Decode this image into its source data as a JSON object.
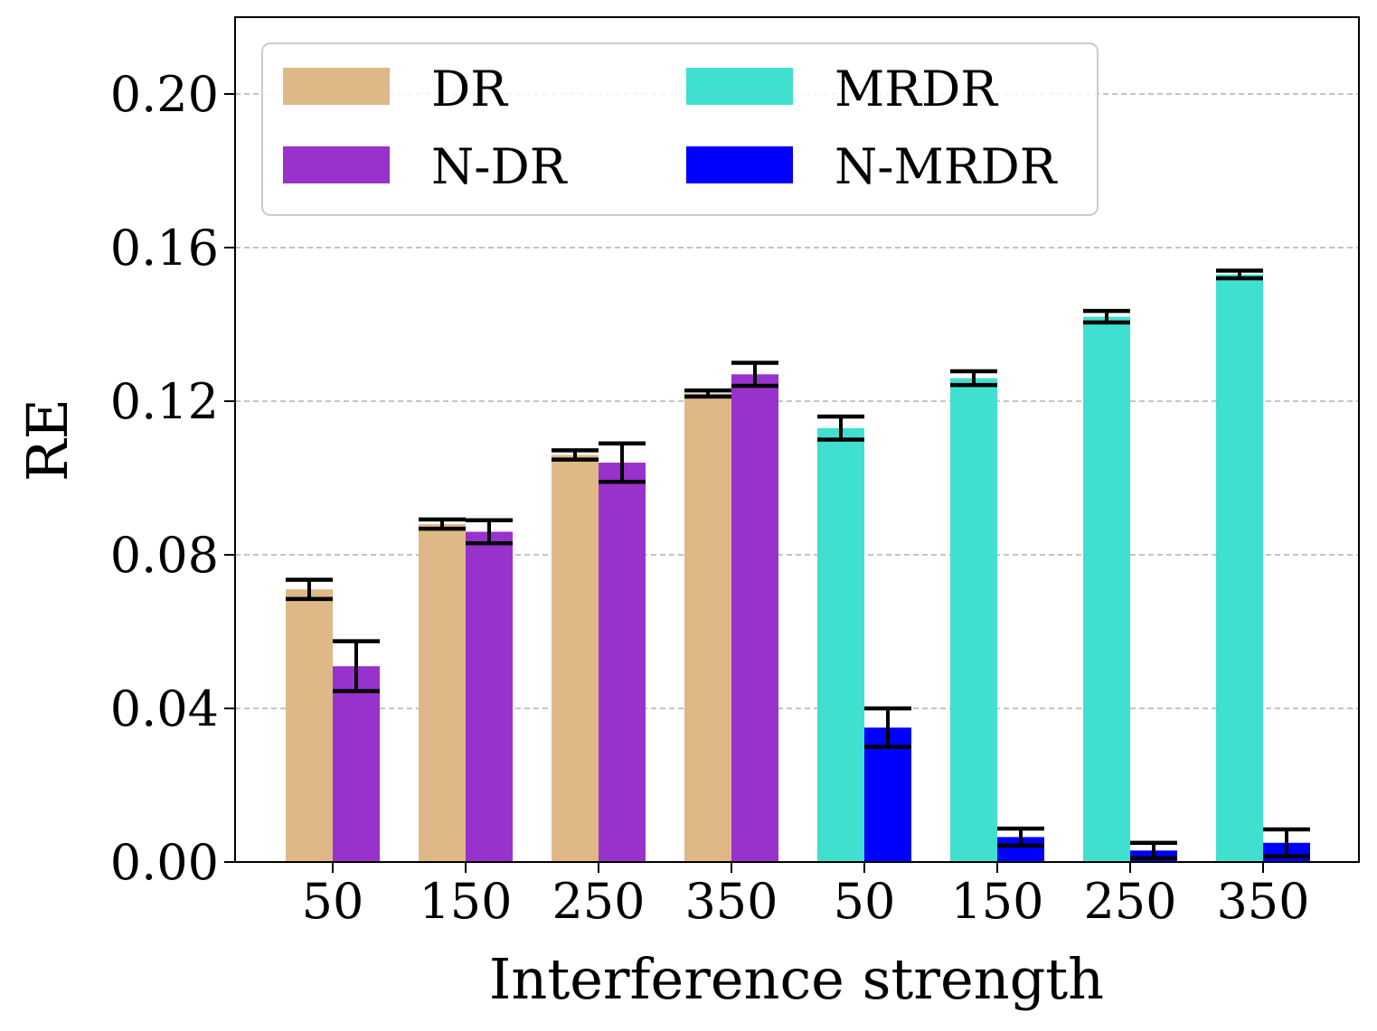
{
  "chart_data": {
    "type": "bar",
    "title": "",
    "xlabel": "Interference strength",
    "ylabel": "RE",
    "ylim": [
      0,
      0.22
    ],
    "yticks": [
      "0.00",
      "0.04",
      "0.08",
      "0.12",
      "0.16",
      "0.20"
    ],
    "ytick_values": [
      0.0,
      0.04,
      0.08,
      0.12,
      0.16,
      0.2
    ],
    "grid": "horizontal dashed",
    "legend_position": "top-left",
    "groups": [
      {
        "categories": [
          "50",
          "150",
          "250",
          "350"
        ],
        "series": [
          {
            "name": "DR",
            "color": "#DEB887",
            "values": [
              0.071,
              0.088,
              0.106,
              0.122
            ],
            "errors": [
              0.0025,
              0.0012,
              0.0012,
              0.0008
            ]
          },
          {
            "name": "N-DR",
            "color": "#9932CC",
            "values": [
              0.051,
              0.086,
              0.104,
              0.127
            ],
            "errors": [
              0.0065,
              0.003,
              0.005,
              0.003
            ]
          }
        ]
      },
      {
        "categories": [
          "50",
          "150",
          "250",
          "350"
        ],
        "series": [
          {
            "name": "MRDR",
            "color": "#40E0D0",
            "values": [
              0.113,
              0.126,
              0.142,
              0.153
            ],
            "errors": [
              0.003,
              0.0018,
              0.0015,
              0.001
            ]
          },
          {
            "name": "N-MRDR",
            "color": "#0000FF",
            "values": [
              0.035,
              0.0065,
              0.003,
              0.005
            ],
            "errors": [
              0.005,
              0.0022,
              0.002,
              0.0035
            ]
          }
        ]
      }
    ],
    "legend": [
      {
        "label": "DR",
        "color": "#DEB887"
      },
      {
        "label": "MRDR",
        "color": "#40E0D0"
      },
      {
        "label": "N-DR",
        "color": "#9932CC"
      },
      {
        "label": "N-MRDR",
        "color": "#0000FF"
      }
    ]
  }
}
